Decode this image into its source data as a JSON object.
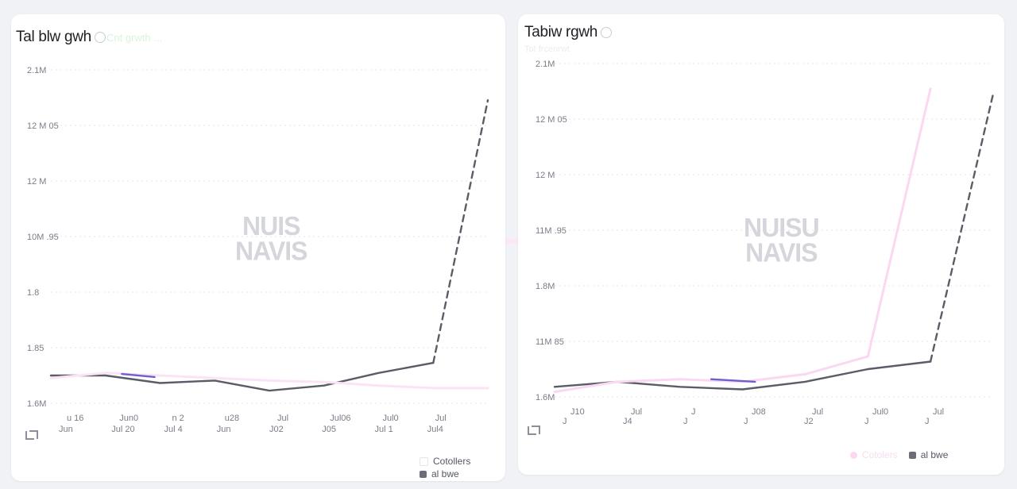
{
  "bridge_color": "#fde6f7",
  "cards": [
    {
      "title": "Tal blw gwh",
      "subtitle": "Cnt grwth ...",
      "watermark": [
        "NUIS",
        "NAVIS"
      ],
      "legend": [
        {
          "label": "Cotollers",
          "color": "#ffffff"
        },
        {
          "label": "al bwe",
          "color": "#6b6e78"
        }
      ],
      "chart_data": {
        "type": "line",
        "y_tick_labels": [
          "2.1M",
          "12 M 05",
          "12 M",
          "10M .95",
          "1.8",
          "1.85",
          "1.6M"
        ],
        "x_tick_labels_top": [
          "u 16",
          "Jun0",
          "n 2",
          "u28",
          "Jul",
          "Jul06",
          "Jul0",
          "Jul"
        ],
        "x_tick_labels_bottom": [
          "Jun",
          "Jul 20",
          "Jul 4",
          "Jun",
          "J02",
          "J05",
          "Jul 1",
          "Jul4"
        ],
        "ylim": [
          0,
          6.6
        ],
        "grid": true,
        "series": [
          {
            "color": "#5a5d66",
            "style": "solid",
            "points": [
              [
                0,
                0.55
              ],
              [
                1,
                0.55
              ],
              [
                2,
                0.4
              ],
              [
                3,
                0.45
              ],
              [
                4,
                0.25
              ],
              [
                5,
                0.35
              ],
              [
                6,
                0.6
              ],
              [
                7,
                0.8
              ]
            ]
          },
          {
            "color": "#5a5d66",
            "style": "dashed",
            "points": [
              [
                7,
                0.8
              ],
              [
                8,
                6.0
              ]
            ]
          },
          {
            "color": "#fbe3f6",
            "style": "solid",
            "points": [
              [
                0,
                0.5
              ],
              [
                1,
                0.6
              ],
              [
                2,
                0.55
              ],
              [
                3,
                0.5
              ],
              [
                4,
                0.45
              ],
              [
                5,
                0.42
              ],
              [
                6,
                0.35
              ],
              [
                7,
                0.3
              ],
              [
                8,
                0.3
              ]
            ]
          },
          {
            "color": "#6d5fd0",
            "style": "solid",
            "points": [
              [
                1.3,
                0.58
              ],
              [
                1.9,
                0.52
              ]
            ]
          }
        ]
      }
    },
    {
      "title": "Tabiw rgwh",
      "subtitle": "Tot frcenrwt",
      "watermark": [
        "NUISU",
        "NAVIS"
      ],
      "legend": [
        {
          "label": "Cotolers",
          "color": "#fbd8f2"
        },
        {
          "label": "al bwe",
          "color": "#6b6e78"
        }
      ],
      "chart_data": {
        "type": "line",
        "y_tick_labels": [
          "2.1M",
          "12 M 05",
          "12 M",
          "11M .95",
          "1.8M",
          "11M 85",
          "1.6M"
        ],
        "x_tick_labels_top": [
          "J10",
          "Jul",
          "J",
          "J08",
          "Jul",
          "Jul0",
          "Jul"
        ],
        "x_tick_labels_bottom": [
          "J",
          "J4",
          "J",
          "J",
          "J2",
          "J",
          "J"
        ],
        "ylim": [
          0,
          6.6
        ],
        "grid": true,
        "series": [
          {
            "color": "#5a5d66",
            "style": "solid",
            "points": [
              [
                0,
                0.2
              ],
              [
                1,
                0.3
              ],
              [
                2,
                0.2
              ],
              [
                3,
                0.15
              ],
              [
                4,
                0.3
              ],
              [
                5,
                0.55
              ],
              [
                6,
                0.7
              ]
            ]
          },
          {
            "color": "#5a5d66",
            "style": "dashed",
            "points": [
              [
                6,
                0.7
              ],
              [
                7,
                6.0
              ]
            ]
          },
          {
            "color": "#fbd8f2",
            "style": "solid",
            "points": [
              [
                0,
                0.1
              ],
              [
                1,
                0.3
              ],
              [
                2,
                0.35
              ],
              [
                3,
                0.3
              ],
              [
                4,
                0.45
              ],
              [
                5,
                0.8
              ],
              [
                6,
                6.1
              ]
            ]
          },
          {
            "color": "#6d5fd0",
            "style": "solid",
            "points": [
              [
                2.5,
                0.35
              ],
              [
                3.2,
                0.3
              ]
            ]
          }
        ]
      }
    }
  ]
}
